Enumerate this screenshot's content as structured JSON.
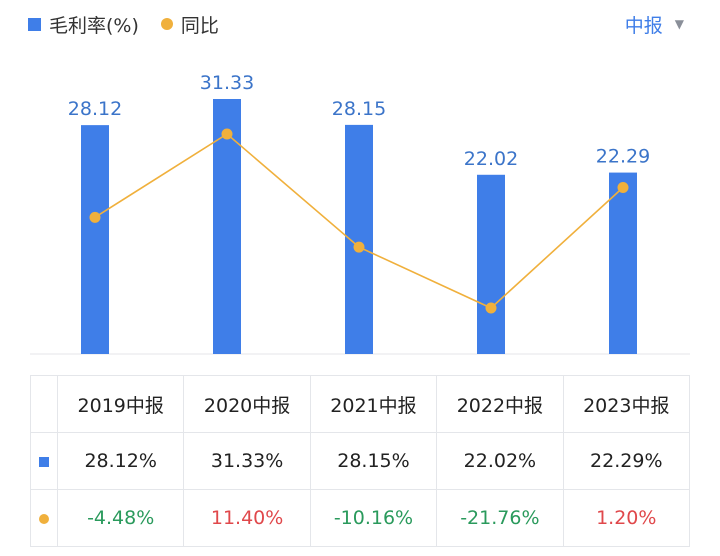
{
  "legend": {
    "bar_label": "毛利率(%)",
    "line_label": "同比"
  },
  "period": {
    "selected": "中报",
    "caret": "▼"
  },
  "chart_data": {
    "type": "bar",
    "categories": [
      "2019中报",
      "2020中报",
      "2021中报",
      "2022中报",
      "2023中报"
    ],
    "series": [
      {
        "name": "毛利率(%)",
        "type": "bar",
        "values": [
          28.12,
          31.33,
          28.15,
          22.02,
          22.29
        ],
        "labels": [
          "28.12",
          "31.33",
          "28.15",
          "22.02",
          "22.29"
        ],
        "color": "#3f7ee8"
      },
      {
        "name": "同比",
        "type": "line",
        "values": [
          -4.48,
          11.4,
          -10.16,
          -21.76,
          1.2
        ],
        "color": "#f0b03c"
      }
    ],
    "ylim": [
      0,
      32
    ],
    "line_ylim": [
      -35,
      20
    ],
    "grid": false
  },
  "table": {
    "headers": [
      "2019中报",
      "2020中报",
      "2021中报",
      "2022中报",
      "2023中报"
    ],
    "rows": [
      {
        "marker": "square",
        "cells": [
          {
            "text": "28.12%"
          },
          {
            "text": "31.33%"
          },
          {
            "text": "28.15%"
          },
          {
            "text": "22.02%"
          },
          {
            "text": "22.29%"
          }
        ]
      },
      {
        "marker": "dot",
        "cells": [
          {
            "text": "-4.48%",
            "trend": "neg"
          },
          {
            "text": "11.40%",
            "trend": "pos"
          },
          {
            "text": "-10.16%",
            "trend": "neg"
          },
          {
            "text": "-21.76%",
            "trend": "neg"
          },
          {
            "text": "1.20%",
            "trend": "pos"
          }
        ]
      }
    ]
  },
  "colors": {
    "bar": "#3f7ee8",
    "line": "#f0b03c",
    "negative": "#2a9a5c",
    "positive": "#e0484b",
    "accent": "#3f7ee8"
  }
}
